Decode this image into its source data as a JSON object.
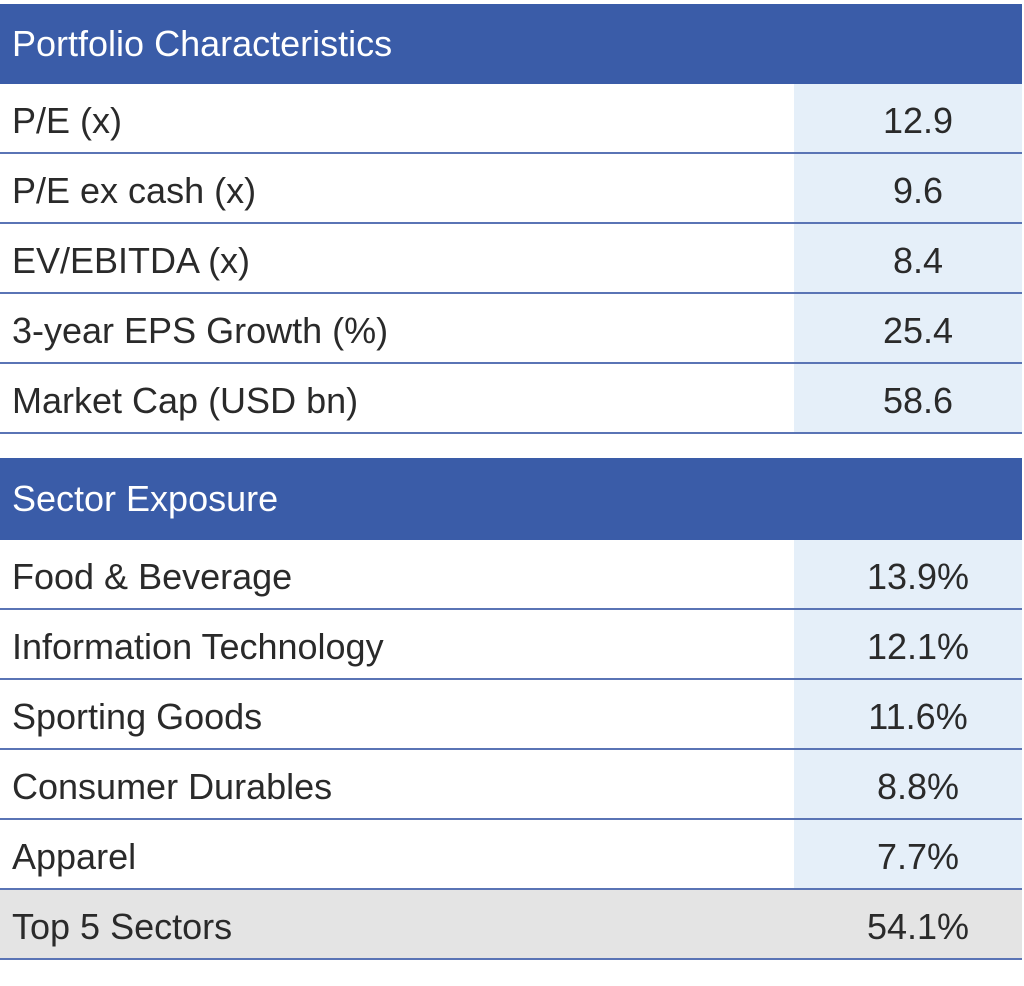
{
  "portfolio": {
    "title": "Portfolio Characteristics",
    "rows": [
      {
        "label": "P/E (x)",
        "value": "12.9"
      },
      {
        "label": "P/E ex cash (x)",
        "value": "9.6"
      },
      {
        "label": "EV/EBITDA (x)",
        "value": "8.4"
      },
      {
        "label": "3-year EPS Growth (%)",
        "value": "25.4"
      },
      {
        "label": "Market Cap (USD bn)",
        "value": "58.6"
      }
    ]
  },
  "sector": {
    "title": "Sector Exposure",
    "rows": [
      {
        "label": "Food & Beverage",
        "value": "13.9%"
      },
      {
        "label": "Information Technology",
        "value": "12.1%"
      },
      {
        "label": "Sporting Goods",
        "value": "11.6%"
      },
      {
        "label": "Consumer Durables",
        "value": "8.8%"
      },
      {
        "label": "Apparel",
        "value": "7.7%"
      }
    ],
    "total": {
      "label": "Top 5 Sectors",
      "value": "54.1%"
    }
  },
  "colors": {
    "header_bg": "#3a5ca8",
    "value_bg": "#e5eff9",
    "total_bg": "#e4e4e4",
    "rule": "#5a74b5"
  }
}
